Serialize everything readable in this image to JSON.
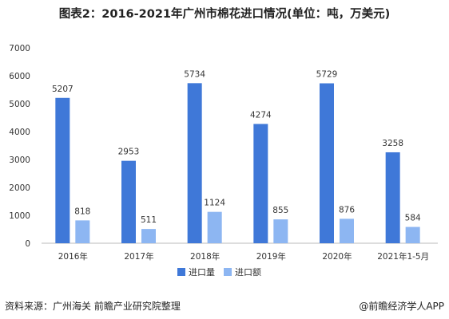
{
  "title": "图表2：2016-2021年广州市棉花进口情况(单位：吨，万美元)",
  "footer": {
    "source": "资料来源：广州海关 前瞻产业研究院整理",
    "brand": "@前瞻经济学人APP"
  },
  "colors": {
    "volume": "#3f78d8",
    "value": "#8db6f2",
    "axis": "#bbbbbb",
    "grid": "#e3e3e3"
  },
  "chart_data": {
    "type": "bar",
    "title": "图表2：2016-2021年广州市棉花进口情况(单位：吨，万美元)",
    "xlabel": "",
    "ylabel": "",
    "ylim": [
      0,
      7000
    ],
    "yticks": [
      0,
      1000,
      2000,
      3000,
      4000,
      5000,
      6000,
      7000
    ],
    "categories": [
      "2016年",
      "2017年",
      "2018年",
      "2019年",
      "2020年",
      "2021年1-5月"
    ],
    "series": [
      {
        "name": "进口量",
        "values": [
          5207,
          2953,
          5734,
          4274,
          5729,
          3258
        ]
      },
      {
        "name": "进口额",
        "values": [
          818,
          511,
          1124,
          855,
          876,
          584
        ]
      }
    ],
    "legend_position": "bottom-center",
    "grid": false
  }
}
